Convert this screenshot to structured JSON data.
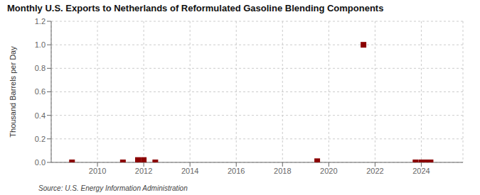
{
  "chart_data": {
    "type": "scatter",
    "title": "Monthly U.S. Exports to Netherlands of Reformulated Gasoline Blending Components",
    "y_label": "Thousand Barrels per Day",
    "annotations": [
      "Source: U.S. Energy Information Administration"
    ],
    "x": [
      2008.9,
      2011.1,
      2011.75,
      2012.0,
      2012.5,
      2019.5,
      2021.5,
      2023.75,
      2024.0,
      2024.2,
      2024.4
    ],
    "values": [
      0.0,
      0.0,
      0.02,
      0.02,
      0.0,
      0.01,
      1.0,
      0.0,
      0.0,
      0.0,
      0.0
    ],
    "color": "#8b0000",
    "marker": "square",
    "xlim": [
      2008.0,
      2025.8
    ],
    "ylim": [
      0,
      1.2
    ],
    "xticks": [
      2010,
      2012,
      2014,
      2016,
      2018,
      2020,
      2022,
      2024
    ],
    "yticks": [
      {
        "value": 0.0,
        "label": "0.0"
      },
      0.2,
      0.4,
      0.6,
      0.8,
      {
        "value": 1.0,
        "label": "1.0"
      },
      1.2
    ],
    "grid": true
  }
}
